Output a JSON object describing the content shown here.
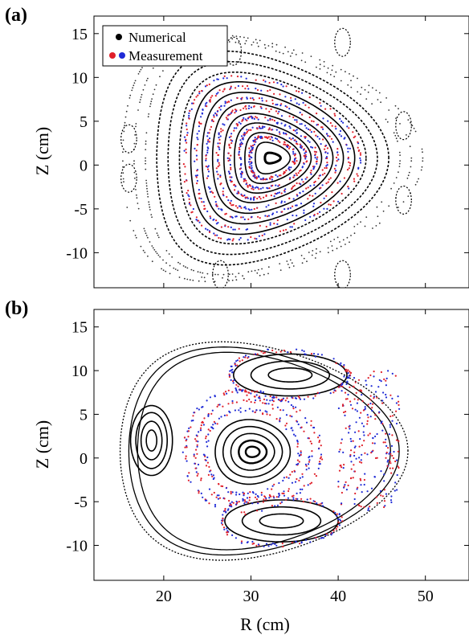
{
  "chart_data": [
    {
      "type": "scatter",
      "panel_label": "(a)",
      "title": "",
      "xlabel": "",
      "ylabel": "Z (cm)",
      "xlim": [
        12,
        55
      ],
      "ylim": [
        -14,
        17
      ],
      "xticks": [
        20,
        30,
        40,
        50
      ],
      "yticks": [
        -10,
        -5,
        0,
        5,
        10,
        15
      ],
      "ytick_labels": [
        "-10",
        "-5",
        "0",
        "5",
        "10",
        "15"
      ],
      "legend": {
        "placement": "top-left",
        "entries": [
          {
            "label": "Numerical",
            "markers": [
              "#000000"
            ]
          },
          {
            "label": "Measurement",
            "markers": [
              "#e0202a",
              "#1f2bd6"
            ]
          }
        ]
      },
      "series": [
        {
          "kind": "numerical",
          "color": "#000000",
          "magnetic_axis": [
            32.5,
            0.8
          ],
          "closed_surfaces": [
            {
              "a": 0.9,
              "b": 0.6
            },
            {
              "a": 2.0,
              "b": 1.8
            },
            {
              "a": 3.2,
              "b": 2.9
            },
            {
              "a": 4.4,
              "b": 4.0
            },
            {
              "a": 5.6,
              "b": 5.1
            },
            {
              "a": 6.9,
              "b": 6.3
            },
            {
              "a": 8.1,
              "b": 7.5
            },
            {
              "a": 9.4,
              "b": 8.7
            },
            {
              "a": 10.7,
              "b": 9.8
            },
            {
              "a": 12.0,
              "b": 11.0
            },
            {
              "a": 13.3,
              "b": 12.2
            }
          ],
          "outer_region": {
            "xrange": [
              15,
              46
            ],
            "zrange": [
              -13,
              14
            ]
          }
        },
        {
          "kind": "measurement",
          "colors": [
            "#e0202a",
            "#1f2bd6"
          ],
          "surfaces": [
            {
              "a": 2.6,
              "b": 2.4
            },
            {
              "a": 3.8,
              "b": 3.5
            },
            {
              "a": 5.0,
              "b": 4.6
            },
            {
              "a": 6.3,
              "b": 5.8
            },
            {
              "a": 7.5,
              "b": 6.9
            },
            {
              "a": 8.8,
              "b": 8.1
            },
            {
              "a": 10.1,
              "b": 9.3
            }
          ]
        }
      ]
    },
    {
      "type": "scatter",
      "panel_label": "(b)",
      "title": "",
      "xlabel": "R (cm)",
      "ylabel": "Z (cm)",
      "xlim": [
        12,
        55
      ],
      "ylim": [
        -14,
        17
      ],
      "xticks": [
        20,
        30,
        40,
        50
      ],
      "yticks": [
        -10,
        -5,
        0,
        5,
        10,
        15
      ],
      "ytick_labels": [
        "-10",
        "-5",
        "0",
        "5",
        "10",
        "15"
      ],
      "series": [
        {
          "kind": "numerical",
          "color": "#000000",
          "islands": [
            {
              "center": [
                30.2,
                0.7
              ],
              "rings": [
                [
                  0.8,
                  0.6
                ],
                [
                  1.6,
                  1.3
                ],
                [
                  2.5,
                  2.1
                ],
                [
                  3.4,
                  2.9
                ],
                [
                  4.3,
                  3.7
                ]
              ]
            },
            {
              "center": [
                18.6,
                2.0
              ],
              "rings": [
                [
                  0.6,
                  1.2
                ],
                [
                  1.2,
                  2.2
                ],
                [
                  1.8,
                  3.2
                ],
                [
                  2.4,
                  4.0
                ]
              ]
            },
            {
              "center": [
                34.5,
                9.5
              ],
              "rings": [
                [
                  2.5,
                  0.8
                ],
                [
                  4.5,
                  1.6
                ],
                [
                  6.5,
                  2.4
                ]
              ]
            },
            {
              "center": [
                33.5,
                -7.2
              ],
              "rings": [
                [
                  2.5,
                  0.8
                ],
                [
                  4.5,
                  1.6
                ],
                [
                  6.5,
                  2.4
                ]
              ]
            }
          ],
          "separatrix_region": {
            "xrange": [
              15,
              47
            ],
            "zrange": [
              -11.5,
              13
            ]
          }
        },
        {
          "kind": "measurement",
          "colors": [
            "#e0202a",
            "#1f2bd6"
          ],
          "surfaces": [
            {
              "center": [
                30.2,
                0.7
              ],
              "a": 5.4,
              "b": 4.8
            },
            {
              "center": [
                30.2,
                0.7
              ],
              "a": 6.6,
              "b": 5.9
            },
            {
              "center": [
                30.2,
                0.7
              ],
              "a": 7.8,
              "b": 7.0
            },
            {
              "center": [
                34.5,
                9.5
              ],
              "a": 6.8,
              "b": 2.8
            },
            {
              "center": [
                33.5,
                -7.2
              ],
              "a": 6.8,
              "b": 2.8
            }
          ],
          "separatrix_spray": {
            "xrange": [
              40,
              47
            ],
            "zrange": [
              -6,
              10
            ]
          }
        }
      ]
    }
  ]
}
